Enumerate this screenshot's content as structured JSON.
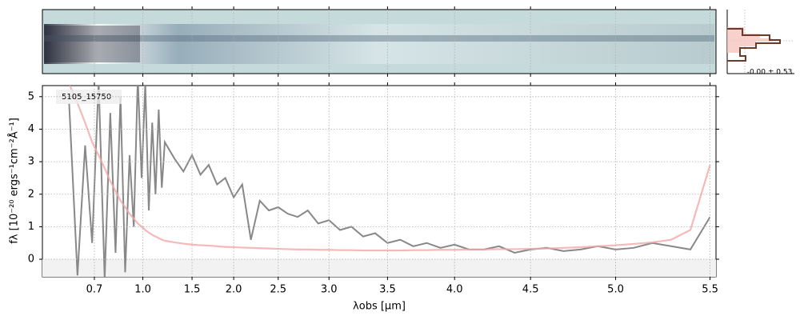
{
  "chart_data": {
    "type": "line",
    "label": "5105_15750",
    "xlabel": "λobs [μm]",
    "ylabel": "fλ [10⁻²⁰ ergs⁻¹cm⁻²Å⁻¹]",
    "histogram_label": "-0.00 ± 0.53",
    "xscale": "prism",
    "grid": true,
    "x": [
      0.6,
      0.63,
      0.66,
      0.69,
      0.72,
      0.75,
      0.78,
      0.81,
      0.84,
      0.87,
      0.9,
      0.93,
      0.96,
      0.99,
      1.02,
      1.05,
      1.08,
      1.11,
      1.14,
      1.17,
      1.2,
      1.3,
      1.4,
      1.5,
      1.6,
      1.7,
      1.8,
      1.9,
      2.0,
      2.1,
      2.2,
      2.3,
      2.4,
      2.5,
      2.6,
      2.7,
      2.8,
      2.9,
      3.0,
      3.1,
      3.2,
      3.3,
      3.4,
      3.5,
      3.6,
      3.7,
      3.8,
      3.9,
      4.0,
      4.1,
      4.2,
      4.3,
      4.4,
      4.5,
      4.6,
      4.7,
      4.8,
      4.9,
      5.0,
      5.1,
      5.2,
      5.3,
      5.4,
      5.5
    ],
    "series": [
      {
        "color": "#888888",
        "values": [
          4.8,
          -0.5,
          3.5,
          0.5,
          5.5,
          -0.6,
          4.5,
          0.2,
          5.0,
          -0.4,
          3.2,
          1.0,
          5.6,
          2.5,
          5.4,
          1.5,
          4.2,
          2.0,
          4.6,
          2.2,
          3.6,
          3.1,
          2.7,
          3.2,
          2.6,
          2.9,
          2.3,
          2.5,
          1.9,
          2.3,
          0.6,
          1.8,
          1.5,
          1.6,
          1.4,
          1.3,
          1.5,
          1.1,
          1.2,
          0.9,
          1.0,
          0.7,
          0.8,
          0.5,
          0.6,
          0.4,
          0.5,
          0.35,
          0.45,
          0.3,
          0.3,
          0.4,
          0.2,
          0.3,
          0.35,
          0.25,
          0.3,
          0.4,
          0.3,
          0.35,
          0.5,
          0.4,
          0.3,
          1.3
        ]
      },
      {
        "color": "#f4a6a6",
        "values": [
          5.4,
          4.8,
          4.2,
          3.6,
          3.2,
          2.8,
          2.4,
          2.1,
          1.8,
          1.6,
          1.4,
          1.25,
          1.1,
          1.0,
          0.9,
          0.82,
          0.75,
          0.7,
          0.65,
          0.6,
          0.57,
          0.52,
          0.48,
          0.45,
          0.43,
          0.42,
          0.4,
          0.38,
          0.37,
          0.36,
          0.35,
          0.34,
          0.33,
          0.32,
          0.31,
          0.3,
          0.3,
          0.29,
          0.29,
          0.28,
          0.28,
          0.27,
          0.27,
          0.27,
          0.27,
          0.28,
          0.28,
          0.29,
          0.29,
          0.3,
          0.3,
          0.31,
          0.31,
          0.32,
          0.33,
          0.35,
          0.37,
          0.4,
          0.43,
          0.47,
          0.52,
          0.6,
          0.9,
          2.9
        ]
      }
    ],
    "xlim": [
      0.52,
      5.53
    ],
    "ylim": [
      -0.54,
      5.34
    ],
    "xticks": [
      0.7,
      {
        "value": 1,
        "label": "1.0"
      },
      1.5,
      {
        "value": 2,
        "label": "2.0"
      },
      2.5,
      {
        "value": 3,
        "label": "3.0"
      },
      3.5,
      {
        "value": 4,
        "label": "4.0"
      },
      4.5,
      {
        "value": 5,
        "label": "5.0"
      },
      5.5
    ],
    "yticks": [
      0,
      1,
      2,
      3,
      4,
      5
    ]
  }
}
